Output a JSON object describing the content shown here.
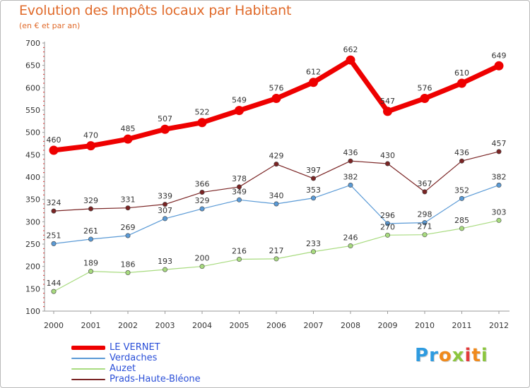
{
  "page": {
    "title": "Evolution des Impôts locaux par Habitant",
    "subtitle": "(en € et par an)"
  },
  "brand": {
    "letters": [
      "P",
      "r",
      "o",
      "x",
      "i",
      "t",
      "i"
    ],
    "colors": [
      "#2e9be0",
      "#2e9be0",
      "#f08a1c",
      "#8cc63f",
      "#e23b3b",
      "#f08a1c",
      "#8cc63f"
    ]
  },
  "chart_data": {
    "type": "line",
    "x": [
      "2000",
      "2001",
      "2002",
      "2003",
      "2004",
      "2005",
      "2006",
      "2007",
      "2008",
      "2009",
      "2010",
      "2011",
      "2012"
    ],
    "ylim": [
      100,
      700
    ],
    "yticks": [
      100,
      150,
      200,
      250,
      300,
      350,
      400,
      450,
      500,
      550,
      600,
      650,
      700
    ],
    "grid": false,
    "legend_position": "bottom-left",
    "series": [
      {
        "name": "LE VERNET",
        "color": "#ee0000",
        "values": [
          460,
          470,
          485,
          507,
          522,
          549,
          576,
          612,
          662,
          547,
          576,
          610,
          649
        ]
      },
      {
        "name": "Verdaches",
        "color": "#5a9ad6",
        "values": [
          251,
          261,
          269,
          307,
          329,
          349,
          340,
          353,
          382,
          296,
          298,
          352,
          382
        ]
      },
      {
        "name": "Auzet",
        "color": "#a8db7f",
        "values": [
          144,
          189,
          186,
          193,
          200,
          216,
          217,
          233,
          246,
          270,
          271,
          285,
          303
        ]
      },
      {
        "name": "Prads-Haute-Bléone",
        "color": "#7a2424",
        "values": [
          324,
          329,
          331,
          339,
          366,
          378,
          429,
          397,
          436,
          430,
          367,
          436,
          457
        ]
      }
    ]
  }
}
